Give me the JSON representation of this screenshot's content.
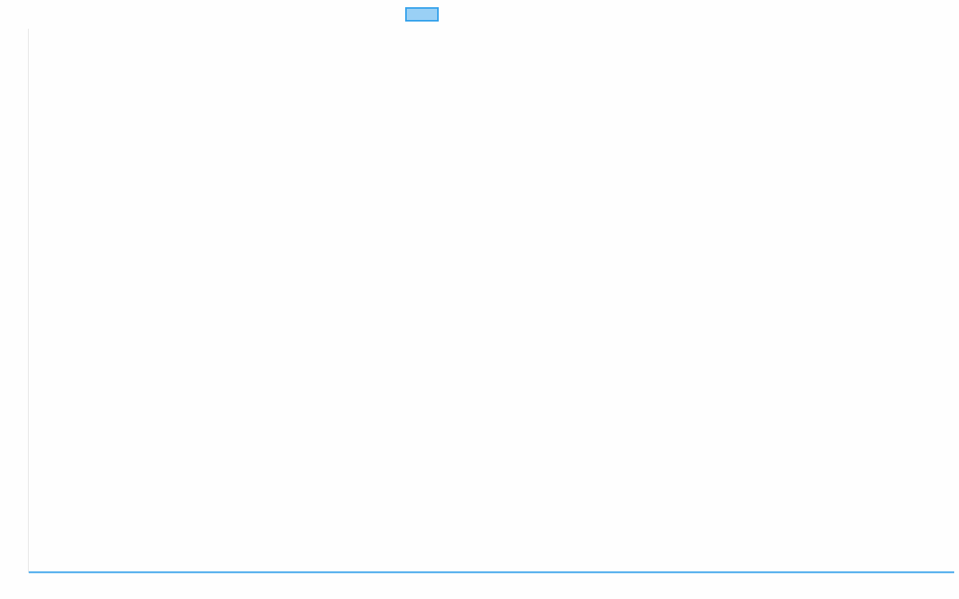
{
  "chart_data": {
    "type": "line",
    "title": "",
    "xlabel": "",
    "ylabel": "",
    "categories": [],
    "series": [
      {
        "values": [],
        "color": "#36a2eb",
        "fill": "#9ad0f5"
      }
    ],
    "legend": "top",
    "grid": false
  },
  "colors": {
    "series_border": "#36a2eb",
    "series_fill": "#9ad0f5",
    "axis": "#e5e5e5"
  }
}
